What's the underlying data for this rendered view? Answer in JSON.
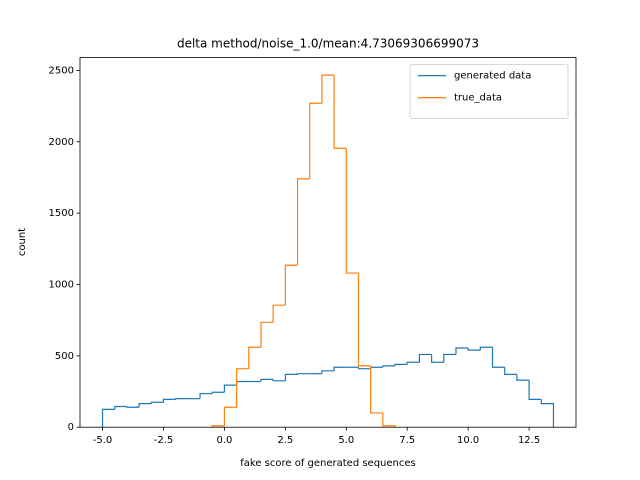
{
  "chart_data": {
    "type": "histogram",
    "title": "delta method/noise_1.0/mean:4.73069306699073",
    "x_label": "fake score of generated sequences",
    "y_label": "count",
    "xlim": [
      -5.925,
      14.425
    ],
    "ylim": [
      0,
      2590
    ],
    "xticks": [
      {
        "value": -5,
        "label": "-5.0"
      },
      -2.5,
      {
        "value": 0,
        "label": "0.0"
      },
      2.5,
      {
        "value": 5,
        "label": "5.0"
      },
      7.5,
      {
        "value": 10,
        "label": "10.0"
      },
      12.5
    ],
    "yticks": [
      0,
      500,
      1000,
      1500,
      2000,
      2500
    ],
    "legend": "upper right",
    "grid": false,
    "series": [
      {
        "name": "generated data",
        "color": "#1f77b4",
        "bins": [
          -5,
          -4.5,
          -4,
          -3.5,
          -3,
          -2.5,
          -2,
          -1.5,
          -1,
          -0.5,
          0,
          0.5,
          1,
          1.5,
          2,
          2.5,
          3,
          3.5,
          4,
          4.5,
          5,
          5.5,
          6,
          6.5,
          7,
          7.5,
          8,
          8.5,
          9,
          9.5,
          10,
          10.5,
          11,
          11.5,
          12,
          12.5,
          13,
          13.5
        ],
        "values": [
          125,
          145,
          140,
          165,
          175,
          195,
          200,
          200,
          235,
          245,
          295,
          320,
          320,
          335,
          325,
          370,
          375,
          375,
          395,
          420,
          420,
          410,
          420,
          430,
          440,
          455,
          510,
          455,
          510,
          555,
          540,
          560,
          420,
          370,
          330,
          195,
          165
        ]
      },
      {
        "name": "true_data",
        "color": "#ff7f0e",
        "bins": [
          -0.5,
          0,
          0.5,
          1,
          1.5,
          2,
          2.5,
          3,
          3.5,
          4,
          4.5,
          5,
          5.5,
          6,
          6.5,
          7
        ],
        "values": [
          10,
          140,
          410,
          560,
          735,
          855,
          1135,
          1740,
          2270,
          2467,
          1955,
          1080,
          430,
          100,
          10
        ]
      }
    ]
  }
}
